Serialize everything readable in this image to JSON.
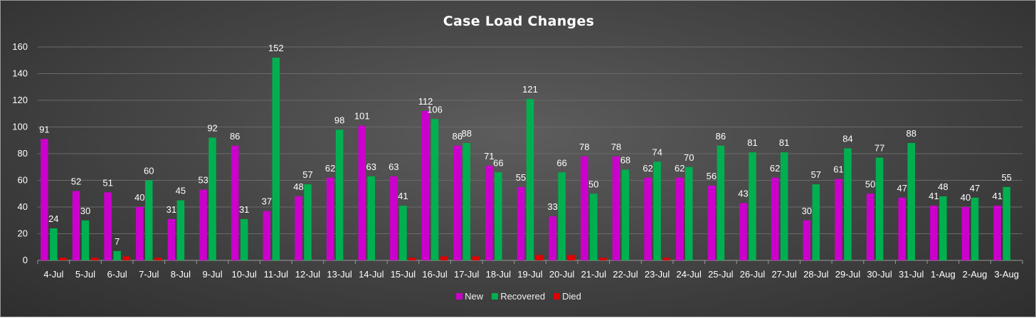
{
  "colors": {
    "new": "#cc00cc",
    "recovered": "#00b050",
    "died": "#e00000",
    "grid": "#6a6a6a",
    "text": "#ffffff"
  },
  "chart_data": {
    "type": "bar",
    "title": "Case Load Changes",
    "xlabel": "",
    "ylabel": "",
    "ylim": [
      0,
      160
    ],
    "yticks": [
      0,
      20,
      40,
      60,
      80,
      100,
      120,
      140,
      160
    ],
    "grid": true,
    "legend_position": "bottom",
    "categories": [
      "4-Jul",
      "5-Jul",
      "6-Jul",
      "7-Jul",
      "8-Jul",
      "9-Jul",
      "10-Jul",
      "11-Jul",
      "12-Jul",
      "13-Jul",
      "14-Jul",
      "15-Jul",
      "16-Jul",
      "17-Jul",
      "18-Jul",
      "19-Jul",
      "20-Jul",
      "21-Jul",
      "22-Jul",
      "23-Jul",
      "24-Jul",
      "25-Jul",
      "26-Jul",
      "27-Jul",
      "28-Jul",
      "29-Jul",
      "30-Jul",
      "31-Jul",
      "1-Aug",
      "2-Aug",
      "3-Aug"
    ],
    "series": [
      {
        "name": "New",
        "color_key": "new",
        "labeled": true,
        "values": [
          91,
          52,
          51,
          40,
          31,
          53,
          86,
          37,
          48,
          62,
          101,
          63,
          112,
          86,
          71,
          55,
          33,
          78,
          78,
          62,
          62,
          56,
          43,
          62,
          30,
          61,
          50,
          47,
          41,
          40,
          41
        ]
      },
      {
        "name": "Recovered",
        "color_key": "recovered",
        "labeled": true,
        "values": [
          24,
          30,
          7,
          60,
          45,
          92,
          31,
          152,
          57,
          98,
          63,
          41,
          106,
          88,
          66,
          121,
          66,
          50,
          68,
          74,
          70,
          86,
          81,
          81,
          57,
          84,
          77,
          88,
          48,
          47,
          55
        ]
      },
      {
        "name": "Died",
        "color_key": "died",
        "labeled": false,
        "values": [
          2,
          2,
          3,
          2,
          0,
          0,
          0,
          0,
          0,
          0,
          0,
          2,
          3,
          3,
          0,
          4,
          4,
          2,
          0,
          2,
          0,
          0,
          0,
          0,
          0,
          0,
          0,
          0,
          0,
          0,
          0
        ]
      }
    ]
  }
}
